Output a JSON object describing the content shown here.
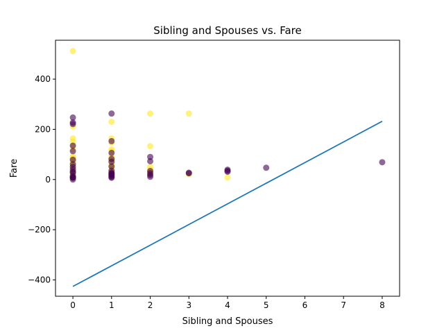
{
  "chart_data": {
    "type": "scatter",
    "title": "Sibling and Spouses vs. Fare",
    "xlabel": "Sibling and Spouses",
    "ylabel": "Fare",
    "xlim": [
      -0.45,
      8.45
    ],
    "ylim": [
      -465,
      555
    ],
    "xticks": [
      0,
      1,
      2,
      3,
      4,
      5,
      6,
      7,
      8
    ],
    "yticks": [
      -400,
      -200,
      0,
      200,
      400
    ],
    "grid": false,
    "legend": "none",
    "colors": {
      "survived": "#fde725",
      "died": "#440154",
      "line": "#1f77b4"
    },
    "point_alpha": 0.6,
    "series": [
      {
        "class": "survived",
        "points": [
          [
            0,
            512
          ],
          [
            0,
            211
          ],
          [
            0,
            164
          ],
          [
            0,
            151
          ],
          [
            0,
            134
          ],
          [
            0,
            120
          ],
          [
            0,
            91
          ],
          [
            0,
            86
          ],
          [
            0,
            80
          ],
          [
            0,
            77
          ],
          [
            0,
            69
          ],
          [
            0,
            57
          ],
          [
            0,
            52
          ],
          [
            0,
            35
          ],
          [
            0,
            30
          ],
          [
            0,
            26
          ],
          [
            0,
            13
          ],
          [
            0,
            10
          ],
          [
            0,
            8
          ],
          [
            1,
            230
          ],
          [
            1,
            164
          ],
          [
            1,
            146
          ],
          [
            1,
            120
          ],
          [
            1,
            113
          ],
          [
            1,
            90
          ],
          [
            1,
            83
          ],
          [
            1,
            78
          ],
          [
            1,
            67
          ],
          [
            1,
            57
          ],
          [
            1,
            53
          ],
          [
            1,
            40
          ],
          [
            1,
            30
          ],
          [
            1,
            26
          ],
          [
            1,
            16
          ],
          [
            2,
            263
          ],
          [
            2,
            133
          ],
          [
            2,
            51
          ],
          [
            2,
            39
          ],
          [
            2,
            33
          ],
          [
            2,
            23
          ],
          [
            3,
            263
          ],
          [
            3,
            21
          ],
          [
            4,
            8
          ]
        ]
      },
      {
        "class": "died",
        "points": [
          [
            0,
            247
          ],
          [
            0,
            227
          ],
          [
            0,
            221
          ],
          [
            0,
            135
          ],
          [
            0,
            113
          ],
          [
            0,
            79
          ],
          [
            0,
            61
          ],
          [
            0,
            50
          ],
          [
            0,
            40
          ],
          [
            0,
            31
          ],
          [
            0,
            27
          ],
          [
            0,
            15
          ],
          [
            0,
            9
          ],
          [
            0,
            8
          ],
          [
            0,
            7
          ],
          [
            0,
            0
          ],
          [
            1,
            263
          ],
          [
            1,
            153
          ],
          [
            1,
            106
          ],
          [
            1,
            82
          ],
          [
            1,
            71
          ],
          [
            1,
            52
          ],
          [
            1,
            35
          ],
          [
            1,
            27
          ],
          [
            1,
            24
          ],
          [
            1,
            21
          ],
          [
            1,
            18
          ],
          [
            1,
            14
          ],
          [
            1,
            10
          ],
          [
            1,
            7
          ],
          [
            2,
            90
          ],
          [
            2,
            73
          ],
          [
            2,
            34
          ],
          [
            2,
            25
          ],
          [
            2,
            18
          ],
          [
            2,
            11
          ],
          [
            3,
            27
          ],
          [
            3,
            25
          ],
          [
            4,
            39
          ],
          [
            4,
            35
          ],
          [
            4,
            31
          ],
          [
            5,
            47
          ],
          [
            8,
            69
          ]
        ]
      }
    ],
    "regression_line": {
      "x": [
        0,
        8
      ],
      "y": [
        -426,
        232
      ]
    }
  }
}
